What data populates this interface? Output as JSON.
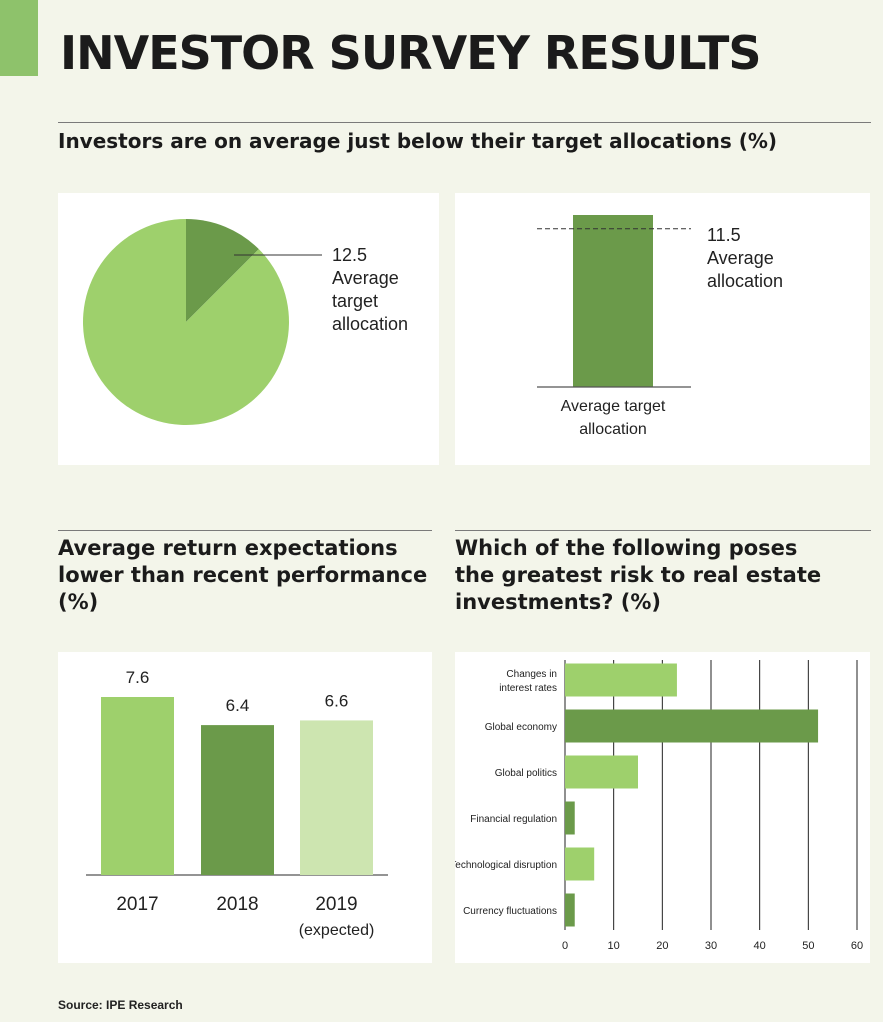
{
  "page_title": "INVESTOR SURVEY RESULTS",
  "section1": {
    "title": "Investors are on average just below their target allocations (%)"
  },
  "section2": {
    "title_lines": [
      "Average return expectations",
      "lower than recent performance",
      "(%)"
    ]
  },
  "section3": {
    "title_lines": [
      "Which of the following poses",
      "the greatest risk to real estate",
      "investments? (%)"
    ]
  },
  "source": "Source: IPE Research",
  "colors": {
    "accent": "#8ec26b",
    "light_green": "#9ed06c",
    "dark_green": "#6b9a4a",
    "pale_green": "#cde5b0"
  },
  "chart_data": [
    {
      "type": "pie",
      "values": [
        12.5,
        87.5
      ],
      "slice_colors": [
        "#6b9a4a",
        "#9ed06c"
      ],
      "annotation": {
        "value": "12.5",
        "lines": [
          "Average",
          "target",
          "allocation"
        ]
      }
    },
    {
      "type": "bar",
      "categories": [
        "Average target allocation"
      ],
      "category_label_lines": [
        "Average target",
        "allocation"
      ],
      "values": [
        12.5
      ],
      "reference": {
        "value": 11.5,
        "label_value": "11.5",
        "label_lines": [
          "Average",
          "allocation"
        ]
      },
      "ylim": [
        0,
        12.5
      ],
      "bar_color": "#6b9a4a"
    },
    {
      "type": "bar",
      "categories": [
        "2017",
        "2018",
        "2019"
      ],
      "category_sublabels": [
        "",
        "",
        "(expected)"
      ],
      "values": [
        7.6,
        6.4,
        6.6
      ],
      "value_labels": [
        "7.6",
        "6.4",
        "6.6"
      ],
      "bar_colors": [
        "#9ed06c",
        "#6b9a4a",
        "#cde5b0"
      ],
      "ylim": [
        0,
        7.6
      ]
    },
    {
      "type": "bar",
      "orientation": "horizontal",
      "categories": [
        [
          "Changes in",
          "interest rates"
        ],
        [
          "Global economy"
        ],
        [
          "Global politics"
        ],
        [
          "Financial regulation"
        ],
        [
          "Technological disruption"
        ],
        [
          "Currency fluctuations"
        ]
      ],
      "values": [
        23,
        52,
        15,
        2,
        6,
        2
      ],
      "bar_colors": [
        "#9ed06c",
        "#6b9a4a",
        "#9ed06c",
        "#6b9a4a",
        "#9ed06c",
        "#6b9a4a"
      ],
      "xlim": [
        0,
        60
      ],
      "xticks": [
        0,
        10,
        20,
        30,
        40,
        50,
        60
      ],
      "grid": true
    }
  ]
}
